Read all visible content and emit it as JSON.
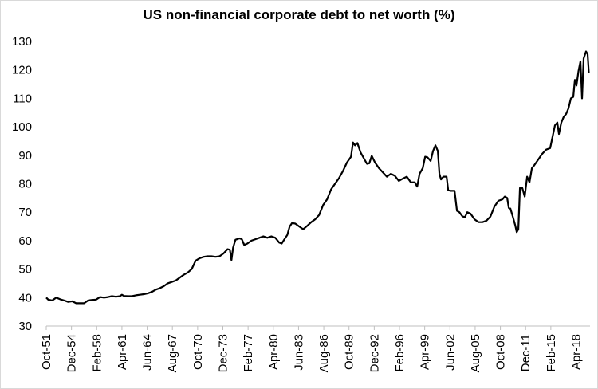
{
  "chart_data": {
    "type": "line",
    "title": "US non-financial corporate debt to net worth (%)",
    "xlabel": "",
    "ylabel": "",
    "ylim": [
      30,
      130
    ],
    "yticks": [
      30,
      40,
      50,
      60,
      70,
      80,
      90,
      100,
      110,
      120,
      130
    ],
    "grid": false,
    "legend": "none",
    "color": "#000000",
    "xlim": [
      1951.75,
      2020.0
    ],
    "xtick_labels": [
      "Oct-51",
      "Dec-54",
      "Feb-58",
      "Apr-61",
      "Jun-64",
      "Aug-67",
      "Oct-70",
      "Dec-73",
      "Feb-77",
      "Apr-80",
      "Jun-83",
      "Aug-86",
      "Oct-89",
      "Dec-92",
      "Feb-96",
      "Apr-99",
      "Jun-02",
      "Aug-05",
      "Oct-08",
      "Dec-11",
      "Feb-15",
      "Apr-18"
    ],
    "xtick_positions": [
      1951.75,
      1954.917,
      1958.083,
      1961.25,
      1964.417,
      1967.583,
      1970.75,
      1973.917,
      1977.083,
      1980.25,
      1983.417,
      1986.583,
      1989.75,
      1992.917,
      1996.083,
      1999.25,
      2002.417,
      2005.583,
      2008.75,
      2011.917,
      2015.083,
      2018.25
    ],
    "series": [
      {
        "points": [
          [
            1951.75,
            40.0
          ],
          [
            1952.0,
            39.3
          ],
          [
            1952.5,
            39.0
          ],
          [
            1953.0,
            40.0
          ],
          [
            1953.5,
            39.4
          ],
          [
            1954.0,
            39.0
          ],
          [
            1954.5,
            38.5
          ],
          [
            1955.0,
            38.7
          ],
          [
            1955.5,
            38.0
          ],
          [
            1956.0,
            38.0
          ],
          [
            1956.5,
            38.0
          ],
          [
            1957.0,
            39.0
          ],
          [
            1957.5,
            39.2
          ],
          [
            1958.0,
            39.3
          ],
          [
            1958.5,
            40.2
          ],
          [
            1959.0,
            40.0
          ],
          [
            1959.5,
            40.2
          ],
          [
            1960.0,
            40.5
          ],
          [
            1960.5,
            40.3
          ],
          [
            1961.0,
            40.5
          ],
          [
            1961.25,
            41.0
          ],
          [
            1961.5,
            40.6
          ],
          [
            1962.0,
            40.5
          ],
          [
            1962.5,
            40.5
          ],
          [
            1963.0,
            40.8
          ],
          [
            1963.5,
            41.0
          ],
          [
            1964.0,
            41.2
          ],
          [
            1964.5,
            41.5
          ],
          [
            1965.0,
            42.0
          ],
          [
            1965.5,
            42.8
          ],
          [
            1966.0,
            43.3
          ],
          [
            1966.5,
            44.0
          ],
          [
            1967.0,
            45.0
          ],
          [
            1967.5,
            45.5
          ],
          [
            1968.0,
            46.0
          ],
          [
            1968.5,
            47.0
          ],
          [
            1969.0,
            48.0
          ],
          [
            1969.5,
            48.8
          ],
          [
            1970.0,
            50.0
          ],
          [
            1970.5,
            53.0
          ],
          [
            1971.0,
            53.8
          ],
          [
            1971.5,
            54.3
          ],
          [
            1972.0,
            54.5
          ],
          [
            1972.5,
            54.5
          ],
          [
            1973.0,
            54.3
          ],
          [
            1973.5,
            54.5
          ],
          [
            1974.0,
            55.5
          ],
          [
            1974.5,
            57.0
          ],
          [
            1974.8,
            56.8
          ],
          [
            1975.0,
            53.2
          ],
          [
            1975.2,
            57.5
          ],
          [
            1975.5,
            60.3
          ],
          [
            1976.0,
            60.8
          ],
          [
            1976.3,
            60.5
          ],
          [
            1976.6,
            58.5
          ],
          [
            1977.0,
            59.0
          ],
          [
            1977.5,
            60.0
          ],
          [
            1978.0,
            60.5
          ],
          [
            1978.5,
            61.0
          ],
          [
            1979.0,
            61.5
          ],
          [
            1979.5,
            61.0
          ],
          [
            1980.0,
            61.5
          ],
          [
            1980.5,
            61.0
          ],
          [
            1981.0,
            59.3
          ],
          [
            1981.3,
            59.0
          ],
          [
            1981.6,
            60.3
          ],
          [
            1982.0,
            62.0
          ],
          [
            1982.3,
            65.0
          ],
          [
            1982.6,
            66.2
          ],
          [
            1983.0,
            66.0
          ],
          [
            1983.5,
            65.0
          ],
          [
            1984.0,
            64.0
          ],
          [
            1984.5,
            65.2
          ],
          [
            1985.0,
            66.5
          ],
          [
            1985.5,
            67.5
          ],
          [
            1986.0,
            69.0
          ],
          [
            1986.5,
            72.5
          ],
          [
            1987.0,
            74.5
          ],
          [
            1987.5,
            78.0
          ],
          [
            1988.0,
            80.0
          ],
          [
            1988.5,
            82.0
          ],
          [
            1989.0,
            84.5
          ],
          [
            1989.5,
            87.5
          ],
          [
            1990.0,
            89.5
          ],
          [
            1990.25,
            94.5
          ],
          [
            1990.5,
            93.5
          ],
          [
            1990.8,
            94.3
          ],
          [
            1991.2,
            91.0
          ],
          [
            1991.6,
            89.0
          ],
          [
            1992.0,
            87.0
          ],
          [
            1992.3,
            87.2
          ],
          [
            1992.6,
            89.8
          ],
          [
            1993.0,
            87.5
          ],
          [
            1993.5,
            85.5
          ],
          [
            1994.0,
            84.0
          ],
          [
            1994.5,
            82.5
          ],
          [
            1995.0,
            83.5
          ],
          [
            1995.5,
            82.8
          ],
          [
            1996.0,
            81.0
          ],
          [
            1996.5,
            81.8
          ],
          [
            1997.0,
            82.5
          ],
          [
            1997.5,
            80.5
          ],
          [
            1998.0,
            80.5
          ],
          [
            1998.3,
            79.0
          ],
          [
            1998.6,
            83.5
          ],
          [
            1999.0,
            85.5
          ],
          [
            1999.3,
            89.5
          ],
          [
            1999.6,
            89.3
          ],
          [
            2000.0,
            88.0
          ],
          [
            2000.3,
            91.5
          ],
          [
            2000.6,
            93.5
          ],
          [
            2000.9,
            91.5
          ],
          [
            2001.1,
            83.5
          ],
          [
            2001.3,
            81.5
          ],
          [
            2001.6,
            82.5
          ],
          [
            2002.0,
            82.5
          ],
          [
            2002.2,
            77.8
          ],
          [
            2002.5,
            77.5
          ],
          [
            2003.0,
            77.5
          ],
          [
            2003.3,
            70.5
          ],
          [
            2003.6,
            70.0
          ],
          [
            2004.0,
            68.5
          ],
          [
            2004.3,
            68.3
          ],
          [
            2004.6,
            70.0
          ],
          [
            2005.0,
            69.5
          ],
          [
            2005.5,
            67.5
          ],
          [
            2006.0,
            66.5
          ],
          [
            2006.5,
            66.5
          ],
          [
            2007.0,
            67.0
          ],
          [
            2007.5,
            68.5
          ],
          [
            2008.0,
            72.0
          ],
          [
            2008.5,
            74.0
          ],
          [
            2009.0,
            74.5
          ],
          [
            2009.3,
            75.5
          ],
          [
            2009.6,
            75.0
          ],
          [
            2009.8,
            71.5
          ],
          [
            2010.0,
            71.3
          ],
          [
            2010.3,
            68.5
          ],
          [
            2010.6,
            65.5
          ],
          [
            2010.8,
            63.0
          ],
          [
            2011.0,
            64.0
          ],
          [
            2011.2,
            78.5
          ],
          [
            2011.5,
            78.5
          ],
          [
            2011.8,
            75.5
          ],
          [
            2012.1,
            82.5
          ],
          [
            2012.4,
            80.5
          ],
          [
            2012.7,
            85.5
          ],
          [
            2013.0,
            86.5
          ],
          [
            2013.5,
            88.5
          ],
          [
            2014.0,
            90.5
          ],
          [
            2014.5,
            92.0
          ],
          [
            2015.0,
            92.5
          ],
          [
            2015.3,
            96.5
          ],
          [
            2015.6,
            100.5
          ],
          [
            2015.9,
            101.5
          ],
          [
            2016.1,
            97.5
          ],
          [
            2016.4,
            101.5
          ],
          [
            2016.7,
            103.5
          ],
          [
            2017.0,
            104.5
          ],
          [
            2017.3,
            106.5
          ],
          [
            2017.6,
            110.0
          ],
          [
            2017.9,
            110.5
          ],
          [
            2018.1,
            116.5
          ],
          [
            2018.3,
            114.5
          ],
          [
            2018.55,
            119.5
          ],
          [
            2018.8,
            123.0
          ],
          [
            2019.0,
            110.0
          ],
          [
            2019.2,
            124.0
          ],
          [
            2019.5,
            126.5
          ],
          [
            2019.7,
            125.5
          ],
          [
            2019.85,
            119.0
          ]
        ]
      }
    ]
  }
}
